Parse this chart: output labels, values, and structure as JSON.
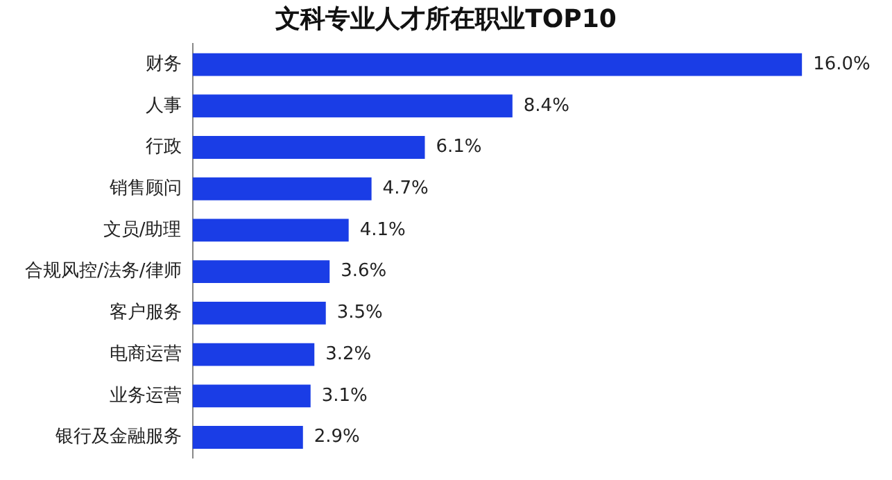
{
  "chart_data": {
    "type": "bar",
    "orientation": "horizontal",
    "title": "文科专业人才所在职业TOP10",
    "categories": [
      "财务",
      "人事",
      "行政",
      "销售顾问",
      "文员/助理",
      "合规风控/法务/律师",
      "客户服务",
      "电商运营",
      "业务运营",
      "银行及金融服务"
    ],
    "values": [
      16.0,
      8.4,
      6.1,
      4.7,
      4.1,
      3.6,
      3.5,
      3.2,
      3.1,
      2.9
    ],
    "value_labels": [
      "16.0%",
      "8.4%",
      "6.1%",
      "4.7%",
      "4.1%",
      "3.6%",
      "3.5%",
      "3.2%",
      "3.1%",
      "2.9%"
    ],
    "color": "#1a3de6"
  }
}
